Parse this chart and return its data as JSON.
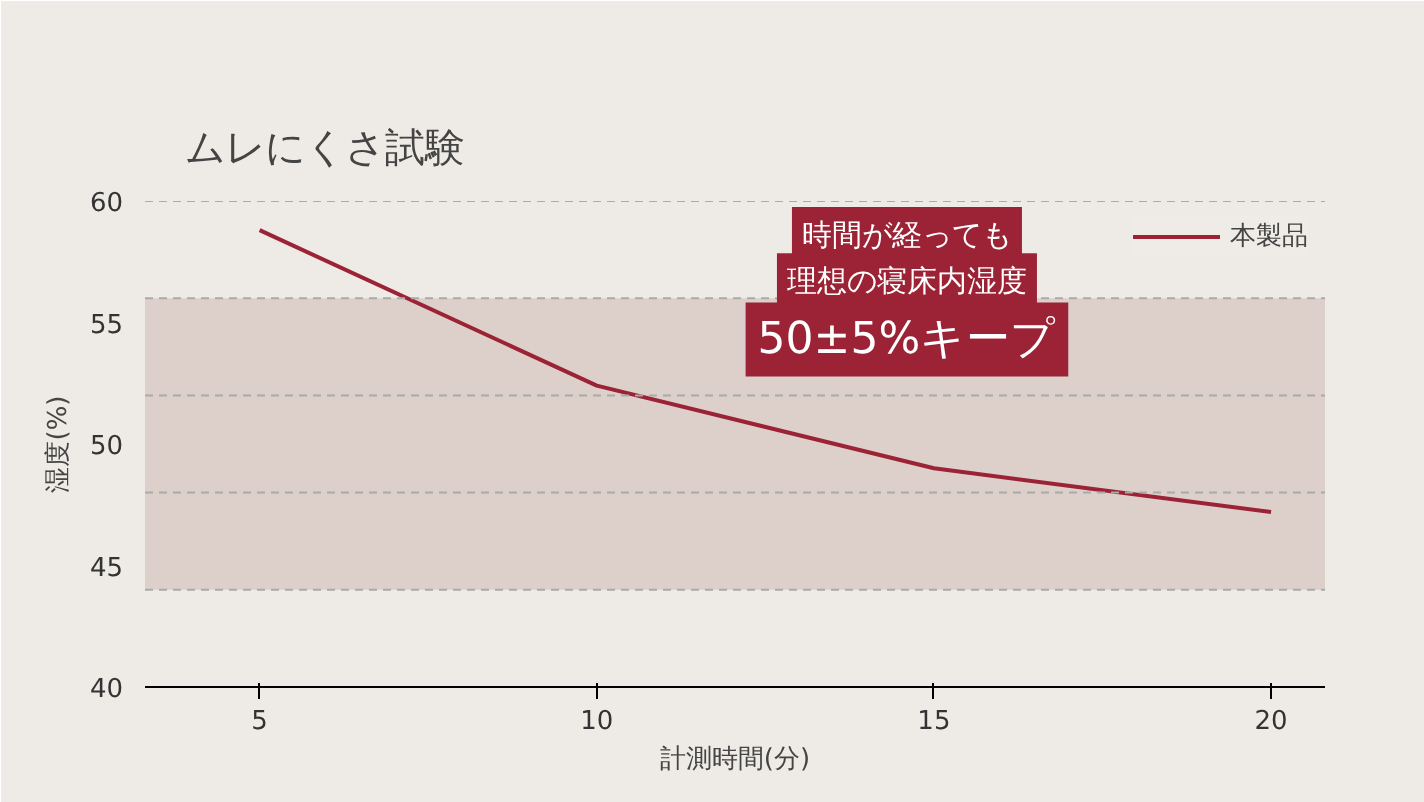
{
  "chart_data": {
    "type": "line",
    "title": "ムレにくさ試験",
    "xlabel": "計測時間(分)",
    "ylabel": "湿度(%)",
    "x": [
      5,
      10,
      15,
      20
    ],
    "series": [
      {
        "name": "本製品",
        "color": "#9b2335",
        "values": [
          58.8,
          52.4,
          49.0,
          47.2
        ]
      }
    ],
    "xlim": [
      3.3,
      20.8
    ],
    "xticks": [
      5,
      10,
      15,
      20
    ],
    "ylim": [
      40,
      60
    ],
    "yticks": [
      40,
      45,
      50,
      55,
      60
    ],
    "grid": false,
    "legend": "top right",
    "marker": "none",
    "line_style": "solid",
    "bands": [
      {
        "axis": "y",
        "from": 44,
        "to": 56,
        "color": "#ddd0cb"
      }
    ],
    "ref_lines": [
      {
        "axis": "y",
        "value": 44,
        "color": "#aaaaaa",
        "line_style": "dashed"
      },
      {
        "axis": "y",
        "value": 48,
        "color": "#aaaaaa",
        "line_style": "dashed"
      },
      {
        "axis": "y",
        "value": 52,
        "color": "#aaaaaa",
        "line_style": "dashed"
      },
      {
        "axis": "y",
        "value": 56,
        "color": "#aaaaaa",
        "line_style": "dashed"
      },
      {
        "axis": "y",
        "value": 60,
        "color": "#aaaaaa",
        "line_style": "dashed"
      }
    ],
    "annotations": [
      "時間が経っても",
      "理想の寝床内湿度",
      "50±5%キープ"
    ]
  }
}
